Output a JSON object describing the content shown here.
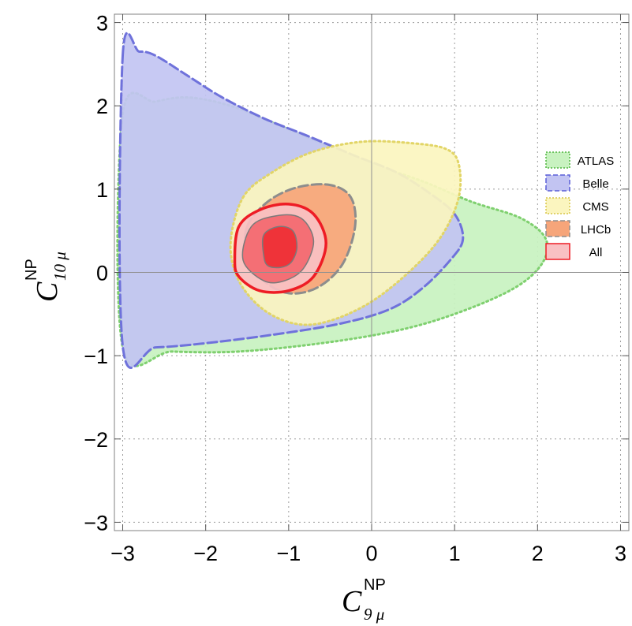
{
  "chart_data": {
    "type": "contour",
    "xlim": [
      -3.1,
      3.1
    ],
    "ylim": [
      -3.1,
      3.1
    ],
    "grid": true,
    "legend_position": "right",
    "xlabel": {
      "main": "C",
      "sup": "NP",
      "sub": "9 μ"
    },
    "ylabel": {
      "main": "C",
      "sup": "NP",
      "sub": "10 μ"
    },
    "xticks": [
      -3,
      -2,
      -1,
      0,
      1,
      2,
      3
    ],
    "yticks": [
      -3,
      -2,
      -1,
      0,
      1,
      2,
      3
    ],
    "xtick_labels": [
      "−3",
      "−2",
      "−1",
      "0",
      "1",
      "2",
      "3"
    ],
    "ytick_labels": [
      "−3",
      "−2",
      "−1",
      "0",
      "1",
      "2",
      "3"
    ],
    "regions": [
      {
        "name": "ATLAS",
        "fill": "#c8f2c0",
        "stroke": "#7fd06f",
        "dash": "2,4",
        "points": [
          [
            -3.0,
            1.9
          ],
          [
            -2.6,
            2.05
          ],
          [
            -2.2,
            2.1
          ],
          [
            -1.7,
            2.0
          ],
          [
            -1.2,
            1.8
          ],
          [
            -0.6,
            1.55
          ],
          [
            0.0,
            1.3
          ],
          [
            0.6,
            1.1
          ],
          [
            1.2,
            0.85
          ],
          [
            1.8,
            0.65
          ],
          [
            2.1,
            0.4
          ],
          [
            2.05,
            0.1
          ],
          [
            1.7,
            -0.2
          ],
          [
            1.0,
            -0.5
          ],
          [
            0.3,
            -0.7
          ],
          [
            -0.6,
            -0.85
          ],
          [
            -1.6,
            -0.95
          ],
          [
            -2.4,
            -0.95
          ],
          [
            -3.0,
            -0.9
          ]
        ]
      },
      {
        "name": "Belle",
        "fill": "#c2c4f2",
        "stroke": "#6f72db",
        "dash": "12,5",
        "points": [
          [
            -3.0,
            2.6
          ],
          [
            -2.8,
            2.65
          ],
          [
            -2.6,
            2.6
          ],
          [
            -2.2,
            2.35
          ],
          [
            -1.8,
            2.1
          ],
          [
            -1.3,
            1.85
          ],
          [
            -0.8,
            1.65
          ],
          [
            -0.2,
            1.4
          ],
          [
            0.3,
            1.2
          ],
          [
            0.7,
            0.95
          ],
          [
            1.0,
            0.7
          ],
          [
            1.1,
            0.4
          ],
          [
            0.95,
            0.15
          ],
          [
            0.6,
            -0.2
          ],
          [
            0.2,
            -0.45
          ],
          [
            -0.4,
            -0.62
          ],
          [
            -1.2,
            -0.75
          ],
          [
            -2.0,
            -0.85
          ],
          [
            -2.6,
            -0.9
          ],
          [
            -3.0,
            -0.88
          ]
        ]
      },
      {
        "name": "CMS",
        "fill": "#fbf5bf",
        "stroke": "#e2d567",
        "dash": "2,4",
        "points": [
          [
            -1.55,
            0.9
          ],
          [
            -1.2,
            1.2
          ],
          [
            -0.7,
            1.45
          ],
          [
            -0.1,
            1.57
          ],
          [
            0.5,
            1.55
          ],
          [
            0.9,
            1.48
          ],
          [
            1.05,
            1.3
          ],
          [
            1.05,
            0.9
          ],
          [
            0.85,
            0.45
          ],
          [
            0.5,
            0.05
          ],
          [
            0.0,
            -0.35
          ],
          [
            -0.5,
            -0.58
          ],
          [
            -0.9,
            -0.62
          ],
          [
            -1.3,
            -0.45
          ],
          [
            -1.6,
            -0.1
          ],
          [
            -1.7,
            0.35
          ]
        ]
      },
      {
        "name": "LHCb",
        "fill": "#f6a57a",
        "stroke": "#8d8d8d",
        "dash": "12,5",
        "points": [
          [
            -1.5,
            0.55
          ],
          [
            -1.25,
            0.85
          ],
          [
            -0.9,
            1.02
          ],
          [
            -0.5,
            1.05
          ],
          [
            -0.25,
            0.9
          ],
          [
            -0.2,
            0.55
          ],
          [
            -0.35,
            0.1
          ],
          [
            -0.65,
            -0.18
          ],
          [
            -1.0,
            -0.25
          ],
          [
            -1.3,
            -0.1
          ],
          [
            -1.5,
            0.2
          ]
        ]
      },
      {
        "name": "All",
        "fill": "#f9c0c3",
        "stroke": "#ee1c25",
        "dash": "",
        "points": [
          [
            -1.65,
            0.15
          ],
          [
            -1.6,
            0.55
          ],
          [
            -1.35,
            0.75
          ],
          [
            -1.0,
            0.82
          ],
          [
            -0.7,
            0.7
          ],
          [
            -0.55,
            0.35
          ],
          [
            -0.7,
            -0.05
          ],
          [
            -1.0,
            -0.22
          ],
          [
            -1.35,
            -0.22
          ],
          [
            -1.6,
            -0.05
          ]
        ]
      }
    ],
    "inner_contours": [
      {
        "fill": "#f46f75",
        "stroke": "#7a7a7a",
        "points": [
          [
            -1.55,
            0.15
          ],
          [
            -1.45,
            0.55
          ],
          [
            -1.15,
            0.68
          ],
          [
            -0.85,
            0.65
          ],
          [
            -0.7,
            0.38
          ],
          [
            -0.82,
            0.05
          ],
          [
            -1.05,
            -0.1
          ],
          [
            -1.3,
            -0.1
          ]
        ]
      },
      {
        "fill": "#ef3339",
        "stroke": "#7a7a7a",
        "points": [
          [
            -1.3,
            0.2
          ],
          [
            -1.3,
            0.45
          ],
          [
            -1.12,
            0.55
          ],
          [
            -0.95,
            0.5
          ],
          [
            -0.9,
            0.3
          ],
          [
            -0.97,
            0.12
          ],
          [
            -1.1,
            0.06
          ],
          [
            -1.25,
            0.08
          ]
        ]
      }
    ],
    "legend": [
      {
        "label": "ATLAS",
        "fill": "#c8f2c0",
        "stroke": "#4fb53f",
        "dash": "2,2"
      },
      {
        "label": "Belle",
        "fill": "#c2c4f2",
        "stroke": "#5a5fd8",
        "dash": "6,3"
      },
      {
        "label": "CMS",
        "fill": "#fbf5bf",
        "stroke": "#d8c54a",
        "dash": "2,2"
      },
      {
        "label": "LHCb",
        "fill": "#f6a57a",
        "stroke": "#8d8d8d",
        "dash": "6,3"
      },
      {
        "label": "All",
        "fill": "#f9c0c3",
        "stroke": "#ee1c25",
        "dash": ""
      }
    ]
  }
}
